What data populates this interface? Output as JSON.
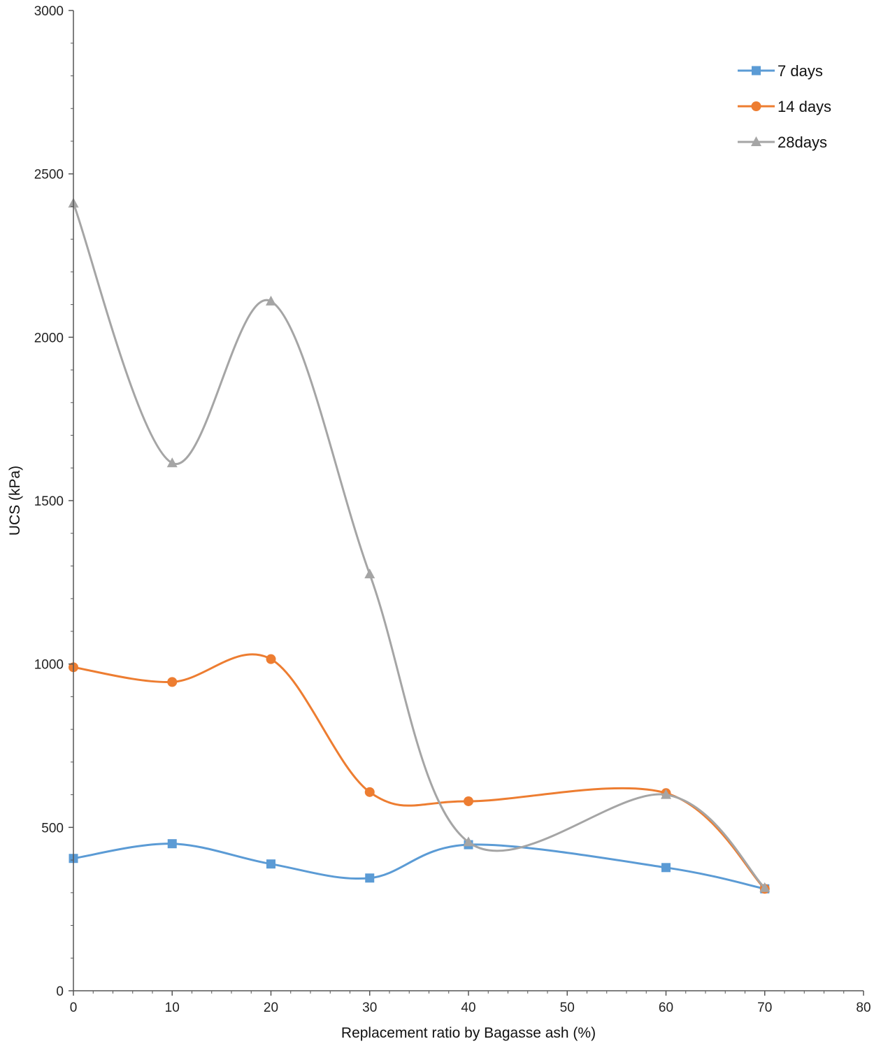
{
  "chart_data": {
    "type": "line",
    "xlabel": "Replacement ratio by Bagasse ash (%)",
    "ylabel": "UCS (kPa)",
    "xlim": [
      0,
      80
    ],
    "ylim": [
      0,
      3000
    ],
    "x_ticks": [
      0,
      10,
      20,
      30,
      40,
      50,
      60,
      70,
      80
    ],
    "y_ticks": [
      0,
      500,
      1000,
      1500,
      2000,
      2500,
      3000
    ],
    "grid": false,
    "legend_position": "top-right",
    "smooth": true,
    "series": [
      {
        "name": "7 days",
        "color": "#5b9bd5",
        "marker": "square",
        "x": [
          0,
          10,
          20,
          30,
          40,
          60,
          70
        ],
        "y": [
          405,
          450,
          388,
          345,
          447,
          377,
          312
        ]
      },
      {
        "name": "14 days",
        "color": "#ed7d31",
        "marker": "circle",
        "x": [
          0,
          10,
          20,
          30,
          40,
          60,
          70
        ],
        "y": [
          990,
          945,
          1015,
          608,
          580,
          605,
          312
        ]
      },
      {
        "name": "28days",
        "color": "#a5a5a5",
        "marker": "triangle",
        "x": [
          0,
          10,
          20,
          30,
          40,
          60,
          70
        ],
        "y": [
          2410,
          1615,
          2110,
          1275,
          455,
          600,
          315
        ]
      }
    ]
  }
}
